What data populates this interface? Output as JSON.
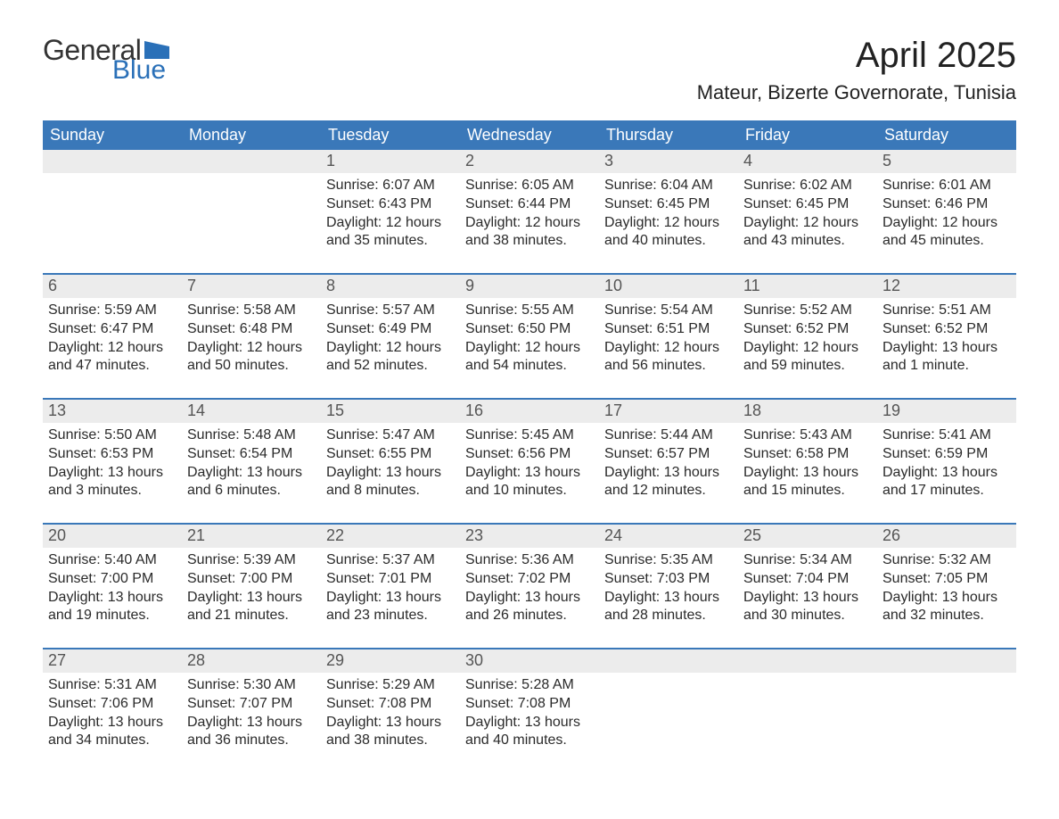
{
  "brand": {
    "general": "General",
    "blue": "Blue",
    "flag_color": "#2a70b8"
  },
  "title": "April 2025",
  "subtitle": "Mateur, Bizerte Governorate, Tunisia",
  "colors": {
    "header_bg": "#3a78b9",
    "header_text": "#ffffff",
    "daynum_bg": "#ececec",
    "daynum_text": "#555555",
    "body_text": "#2a2a2a",
    "week_border": "#3a78b9",
    "page_bg": "#ffffff",
    "logo_general": "#333333",
    "logo_blue": "#2a70b8"
  },
  "typography": {
    "title_fontsize": 40,
    "subtitle_fontsize": 22,
    "dow_fontsize": 18,
    "daynum_fontsize": 18,
    "body_fontsize": 16,
    "font_family": "Segoe UI"
  },
  "calendar": {
    "type": "table",
    "columns": [
      "Sunday",
      "Monday",
      "Tuesday",
      "Wednesday",
      "Thursday",
      "Friday",
      "Saturday"
    ],
    "weeks": [
      [
        null,
        null,
        {
          "n": "1",
          "sunrise": "Sunrise: 6:07 AM",
          "sunset": "Sunset: 6:43 PM",
          "daylight": "Daylight: 12 hours and 35 minutes."
        },
        {
          "n": "2",
          "sunrise": "Sunrise: 6:05 AM",
          "sunset": "Sunset: 6:44 PM",
          "daylight": "Daylight: 12 hours and 38 minutes."
        },
        {
          "n": "3",
          "sunrise": "Sunrise: 6:04 AM",
          "sunset": "Sunset: 6:45 PM",
          "daylight": "Daylight: 12 hours and 40 minutes."
        },
        {
          "n": "4",
          "sunrise": "Sunrise: 6:02 AM",
          "sunset": "Sunset: 6:45 PM",
          "daylight": "Daylight: 12 hours and 43 minutes."
        },
        {
          "n": "5",
          "sunrise": "Sunrise: 6:01 AM",
          "sunset": "Sunset: 6:46 PM",
          "daylight": "Daylight: 12 hours and 45 minutes."
        }
      ],
      [
        {
          "n": "6",
          "sunrise": "Sunrise: 5:59 AM",
          "sunset": "Sunset: 6:47 PM",
          "daylight": "Daylight: 12 hours and 47 minutes."
        },
        {
          "n": "7",
          "sunrise": "Sunrise: 5:58 AM",
          "sunset": "Sunset: 6:48 PM",
          "daylight": "Daylight: 12 hours and 50 minutes."
        },
        {
          "n": "8",
          "sunrise": "Sunrise: 5:57 AM",
          "sunset": "Sunset: 6:49 PM",
          "daylight": "Daylight: 12 hours and 52 minutes."
        },
        {
          "n": "9",
          "sunrise": "Sunrise: 5:55 AM",
          "sunset": "Sunset: 6:50 PM",
          "daylight": "Daylight: 12 hours and 54 minutes."
        },
        {
          "n": "10",
          "sunrise": "Sunrise: 5:54 AM",
          "sunset": "Sunset: 6:51 PM",
          "daylight": "Daylight: 12 hours and 56 minutes."
        },
        {
          "n": "11",
          "sunrise": "Sunrise: 5:52 AM",
          "sunset": "Sunset: 6:52 PM",
          "daylight": "Daylight: 12 hours and 59 minutes."
        },
        {
          "n": "12",
          "sunrise": "Sunrise: 5:51 AM",
          "sunset": "Sunset: 6:52 PM",
          "daylight": "Daylight: 13 hours and 1 minute."
        }
      ],
      [
        {
          "n": "13",
          "sunrise": "Sunrise: 5:50 AM",
          "sunset": "Sunset: 6:53 PM",
          "daylight": "Daylight: 13 hours and 3 minutes."
        },
        {
          "n": "14",
          "sunrise": "Sunrise: 5:48 AM",
          "sunset": "Sunset: 6:54 PM",
          "daylight": "Daylight: 13 hours and 6 minutes."
        },
        {
          "n": "15",
          "sunrise": "Sunrise: 5:47 AM",
          "sunset": "Sunset: 6:55 PM",
          "daylight": "Daylight: 13 hours and 8 minutes."
        },
        {
          "n": "16",
          "sunrise": "Sunrise: 5:45 AM",
          "sunset": "Sunset: 6:56 PM",
          "daylight": "Daylight: 13 hours and 10 minutes."
        },
        {
          "n": "17",
          "sunrise": "Sunrise: 5:44 AM",
          "sunset": "Sunset: 6:57 PM",
          "daylight": "Daylight: 13 hours and 12 minutes."
        },
        {
          "n": "18",
          "sunrise": "Sunrise: 5:43 AM",
          "sunset": "Sunset: 6:58 PM",
          "daylight": "Daylight: 13 hours and 15 minutes."
        },
        {
          "n": "19",
          "sunrise": "Sunrise: 5:41 AM",
          "sunset": "Sunset: 6:59 PM",
          "daylight": "Daylight: 13 hours and 17 minutes."
        }
      ],
      [
        {
          "n": "20",
          "sunrise": "Sunrise: 5:40 AM",
          "sunset": "Sunset: 7:00 PM",
          "daylight": "Daylight: 13 hours and 19 minutes."
        },
        {
          "n": "21",
          "sunrise": "Sunrise: 5:39 AM",
          "sunset": "Sunset: 7:00 PM",
          "daylight": "Daylight: 13 hours and 21 minutes."
        },
        {
          "n": "22",
          "sunrise": "Sunrise: 5:37 AM",
          "sunset": "Sunset: 7:01 PM",
          "daylight": "Daylight: 13 hours and 23 minutes."
        },
        {
          "n": "23",
          "sunrise": "Sunrise: 5:36 AM",
          "sunset": "Sunset: 7:02 PM",
          "daylight": "Daylight: 13 hours and 26 minutes."
        },
        {
          "n": "24",
          "sunrise": "Sunrise: 5:35 AM",
          "sunset": "Sunset: 7:03 PM",
          "daylight": "Daylight: 13 hours and 28 minutes."
        },
        {
          "n": "25",
          "sunrise": "Sunrise: 5:34 AM",
          "sunset": "Sunset: 7:04 PM",
          "daylight": "Daylight: 13 hours and 30 minutes."
        },
        {
          "n": "26",
          "sunrise": "Sunrise: 5:32 AM",
          "sunset": "Sunset: 7:05 PM",
          "daylight": "Daylight: 13 hours and 32 minutes."
        }
      ],
      [
        {
          "n": "27",
          "sunrise": "Sunrise: 5:31 AM",
          "sunset": "Sunset: 7:06 PM",
          "daylight": "Daylight: 13 hours and 34 minutes."
        },
        {
          "n": "28",
          "sunrise": "Sunrise: 5:30 AM",
          "sunset": "Sunset: 7:07 PM",
          "daylight": "Daylight: 13 hours and 36 minutes."
        },
        {
          "n": "29",
          "sunrise": "Sunrise: 5:29 AM",
          "sunset": "Sunset: 7:08 PM",
          "daylight": "Daylight: 13 hours and 38 minutes."
        },
        {
          "n": "30",
          "sunrise": "Sunrise: 5:28 AM",
          "sunset": "Sunset: 7:08 PM",
          "daylight": "Daylight: 13 hours and 40 minutes."
        },
        null,
        null,
        null
      ]
    ]
  }
}
